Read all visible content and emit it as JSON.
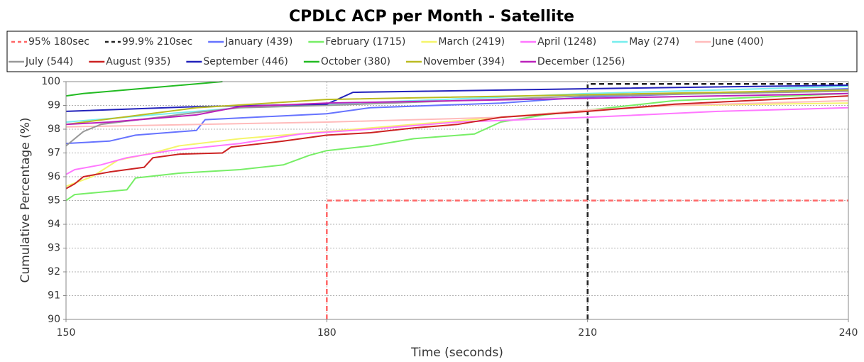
{
  "chart_data": {
    "type": "line",
    "title": "CPDLC ACP per Month - Satellite",
    "xlabel": "Time (seconds)",
    "ylabel": "Cumulative Percentage (%)",
    "xlim": [
      150,
      240
    ],
    "xticks": [
      150,
      180,
      210,
      240
    ],
    "ylim": [
      90,
      100
    ],
    "yticks": [
      90,
      91,
      92,
      93,
      94,
      95,
      96,
      97,
      98,
      99,
      100
    ],
    "grid": true,
    "series": [
      {
        "name": "95% 180sec",
        "color": "#ff6666",
        "dash": true,
        "x": [
          180,
          180,
          240
        ],
        "values": [
          90,
          95,
          95
        ]
      },
      {
        "name": "99.9% 210sec",
        "color": "#222222",
        "dash": true,
        "x": [
          210,
          210,
          240
        ],
        "values": [
          90,
          99.9,
          99.9
        ]
      },
      {
        "name": "January (439)",
        "color": "#6673ff",
        "x": [
          150,
          155,
          158,
          165,
          166,
          180,
          185,
          200,
          210,
          240
        ],
        "values": [
          97.4,
          97.5,
          97.75,
          97.95,
          98.4,
          98.65,
          98.9,
          99.1,
          99.35,
          99.7
        ]
      },
      {
        "name": "February (1715)",
        "color": "#77ee66",
        "x": [
          150,
          151,
          157,
          158,
          163,
          170,
          175,
          178,
          180,
          185,
          190,
          197,
          200,
          205,
          215,
          220,
          240
        ],
        "values": [
          95.0,
          95.25,
          95.45,
          95.95,
          96.15,
          96.3,
          96.5,
          96.9,
          97.1,
          97.3,
          97.6,
          97.8,
          98.3,
          98.6,
          99.0,
          99.2,
          99.5
        ]
      },
      {
        "name": "March (2419)",
        "color": "#f5f56b",
        "x": [
          150,
          153,
          156,
          160,
          163,
          170,
          180,
          190,
          200,
          210,
          220,
          240
        ],
        "values": [
          95.6,
          96.0,
          96.7,
          97.0,
          97.3,
          97.6,
          97.9,
          98.2,
          98.5,
          98.8,
          99.0,
          99.1
        ]
      },
      {
        "name": "April (1248)",
        "color": "#ff77ff",
        "x": [
          150,
          151,
          154,
          157,
          162,
          170,
          177,
          185,
          195,
          210,
          225,
          240
        ],
        "values": [
          96.1,
          96.3,
          96.5,
          96.8,
          97.1,
          97.4,
          97.8,
          98.0,
          98.3,
          98.5,
          98.75,
          98.9
        ]
      },
      {
        "name": "May (274)",
        "color": "#77eeee",
        "x": [
          150,
          170,
          210,
          240
        ],
        "values": [
          98.3,
          98.9,
          99.5,
          99.8
        ]
      },
      {
        "name": "June (400)",
        "color": "#ffbbbb",
        "x": [
          150,
          180,
          200,
          210,
          220,
          240
        ],
        "values": [
          98.1,
          98.3,
          98.5,
          98.8,
          99.0,
          99.2
        ]
      },
      {
        "name": "July (544)",
        "color": "#999999",
        "x": [
          150,
          152,
          154,
          165,
          170,
          180,
          210,
          240
        ],
        "values": [
          97.3,
          97.9,
          98.2,
          98.7,
          98.9,
          99.0,
          99.4,
          99.6
        ]
      },
      {
        "name": "August (935)",
        "color": "#cc2222",
        "x": [
          150,
          151,
          152,
          155,
          159,
          160,
          163,
          168,
          169,
          175,
          180,
          185,
          190,
          195,
          200,
          210,
          220,
          240
        ],
        "values": [
          95.5,
          95.7,
          96.0,
          96.2,
          96.4,
          96.8,
          96.95,
          97.0,
          97.25,
          97.5,
          97.75,
          97.85,
          98.05,
          98.2,
          98.5,
          98.75,
          99.05,
          99.4
        ]
      },
      {
        "name": "September (446)",
        "color": "#2222bb",
        "x": [
          150,
          165,
          180,
          183,
          210,
          240
        ],
        "values": [
          98.75,
          98.95,
          99.05,
          99.55,
          99.7,
          99.85
        ]
      },
      {
        "name": "October (380)",
        "color": "#22bb22",
        "x": [
          150,
          152,
          168
        ],
        "values": [
          99.4,
          99.5,
          100
        ]
      },
      {
        "name": "November (394)",
        "color": "#bbbb22",
        "x": [
          150,
          165,
          180,
          210,
          240
        ],
        "values": [
          98.2,
          98.9,
          99.25,
          99.45,
          99.65
        ]
      },
      {
        "name": "December (1256)",
        "color": "#bb22bb",
        "x": [
          150,
          155,
          165,
          170,
          180,
          210,
          240
        ],
        "values": [
          98.2,
          98.3,
          98.6,
          98.95,
          99.1,
          99.3,
          99.5
        ]
      }
    ]
  }
}
